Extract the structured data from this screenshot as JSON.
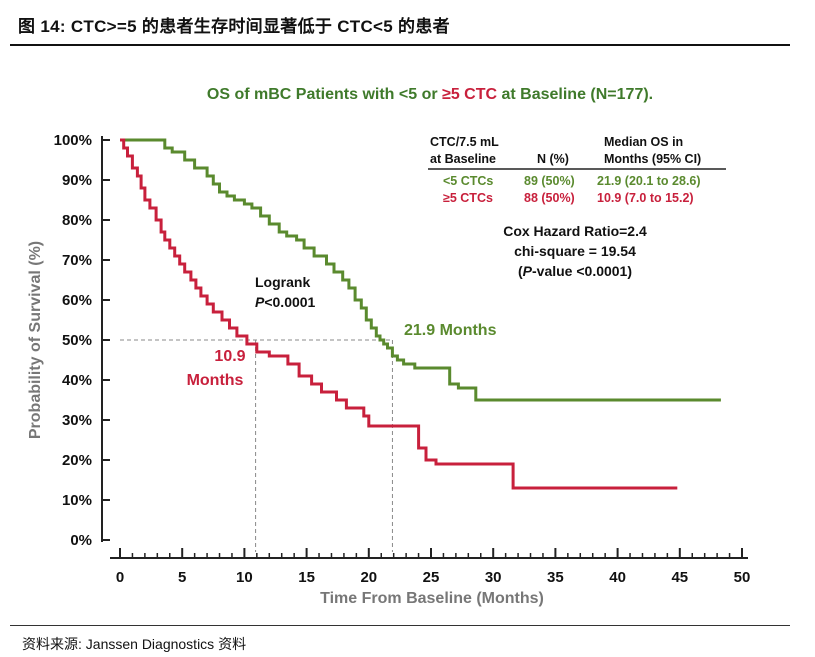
{
  "figure": {
    "header": "图 14:  CTC>=5 的患者生存时间显著低于 CTC<5 的患者",
    "source": "资料来源:  Janssen Diagnostics 资料"
  },
  "chart_data": {
    "type": "line",
    "step": true,
    "title": "OS of mBC Patients with <5 or ≥5 CTC at Baseline (N=177).",
    "title_parts": {
      "prefix": "OS of mBC Patients with <5 or ",
      "highlight": "≥5 CTC",
      "suffix": " at Baseline (N=177)."
    },
    "xlabel": "Time From Baseline (Months)",
    "ylabel": "Probability of Survival (%)",
    "xlim": [
      0,
      50
    ],
    "ylim": [
      0,
      100
    ],
    "xticks": [
      0,
      5,
      10,
      15,
      20,
      25,
      30,
      35,
      40,
      45,
      50
    ],
    "yticks": [
      0,
      10,
      20,
      30,
      40,
      50,
      60,
      70,
      80,
      90,
      100
    ],
    "ytick_labels": [
      "0%",
      "10%",
      "20%",
      "30%",
      "40%",
      "50%",
      "60%",
      "70%",
      "80%",
      "90%",
      "100%"
    ],
    "colors": {
      "green": "#5a8a2e",
      "red": "#c8203c",
      "axis": "#222222",
      "grey": "#777777",
      "title": "#3f7a2b"
    },
    "series": [
      {
        "name": "<5 CTCs",
        "color": "#5a8a2e",
        "x": [
          0,
          3.3,
          3.6,
          4.2,
          5.2,
          6,
          7,
          7.5,
          8,
          8.6,
          9.2,
          10,
          10.6,
          11.3,
          12,
          12.8,
          13.4,
          14.2,
          14.8,
          15.6,
          16.6,
          17.2,
          17.9,
          18.4,
          18.9,
          19.4,
          19.8,
          20.2,
          20.6,
          20.9,
          21.2,
          21.5,
          21.9,
          22.3,
          22.8,
          23.7,
          26.5,
          27.2,
          28.6,
          48.3
        ],
        "y": [
          100,
          100,
          98,
          97,
          95,
          93,
          91,
          89,
          87,
          86,
          85,
          84,
          83,
          81,
          79,
          77,
          76,
          75,
          73,
          71,
          69,
          67,
          65,
          63,
          60,
          58,
          55,
          53,
          51,
          50,
          49,
          48,
          46,
          45,
          44,
          43,
          39,
          38,
          35,
          35
        ]
      },
      {
        "name": "≥5 CTCs",
        "color": "#c8203c",
        "x": [
          0,
          0.3,
          0.6,
          1,
          1.4,
          1.7,
          2,
          2.4,
          2.9,
          3.3,
          3.6,
          4,
          4.4,
          4.8,
          5.2,
          5.7,
          6.1,
          6.5,
          7,
          7.5,
          8.2,
          8.8,
          9.4,
          10.2,
          11,
          12,
          13.5,
          14.4,
          15.4,
          16.2,
          17.4,
          18.2,
          19.6,
          20,
          24,
          24.6,
          25.4,
          31.6,
          44.8
        ],
        "y": [
          100,
          98,
          96,
          93,
          91,
          88,
          85,
          83,
          80,
          77,
          75,
          73,
          71,
          69,
          67,
          65,
          63,
          61,
          59,
          57,
          55,
          53,
          51,
          49,
          47,
          46,
          44,
          41,
          39,
          37,
          35,
          33,
          31,
          28.5,
          23,
          20,
          19,
          13,
          13
        ]
      }
    ],
    "table": {
      "headers": [
        "CTC/7.5 mL at Baseline",
        "N (%)",
        "Median OS in Months (95% CI)"
      ],
      "header_lines": {
        "col1": [
          "CTC/7.5 mL",
          "at Baseline"
        ],
        "col2": [
          "",
          "N (%)"
        ],
        "col3": [
          "Median OS in",
          "Months (95% CI)"
        ]
      },
      "rows": [
        {
          "group": "<5 CTCs",
          "n": "89 (50%)",
          "median": "21.9 (20.1 to 28.6)"
        },
        {
          "group": "≥5 CTCs",
          "n": "88 (50%)",
          "median": "10.9 (7.0 to 15.2)"
        }
      ]
    },
    "cox": {
      "line1": "Cox Hazard Ratio=2.4",
      "line2": "chi-square = 19.54",
      "line3_open": "(",
      "line3_p": "P",
      "line3_rest": "-value <0.0001)"
    },
    "logrank": {
      "line1": "Logrank",
      "p": "P",
      "rest": "<0.0001"
    },
    "annotations": {
      "green_median": "21.9 Months",
      "red_median_value": "10.9",
      "red_median_unit": "Months"
    },
    "medians": {
      "green": 21.9,
      "red": 10.9,
      "level": 50
    }
  }
}
